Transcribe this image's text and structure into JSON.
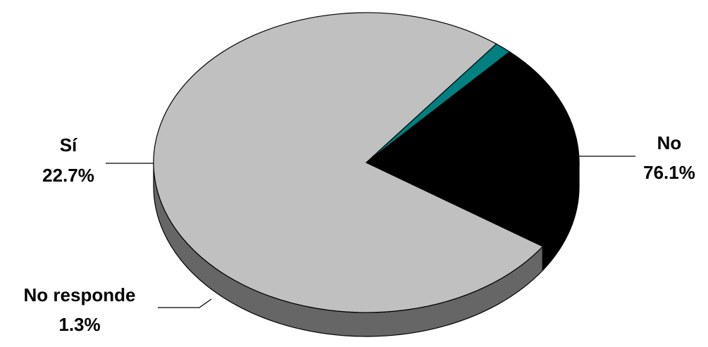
{
  "chart_data": {
    "type": "pie",
    "style": "3d",
    "title": "",
    "slices": [
      {
        "label": "No",
        "value": 76.1,
        "value_label": "76.1%",
        "color": "#c0c0c0",
        "side_color": "#666666"
      },
      {
        "label": "No responde",
        "value": 1.3,
        "value_label": "1.3%",
        "color": "#008080",
        "side_color": "#004040"
      },
      {
        "label": "Sí",
        "value": 22.7,
        "value_label": "22.7%",
        "color": "#000000",
        "side_color": "#000000"
      }
    ],
    "legend": "none"
  }
}
